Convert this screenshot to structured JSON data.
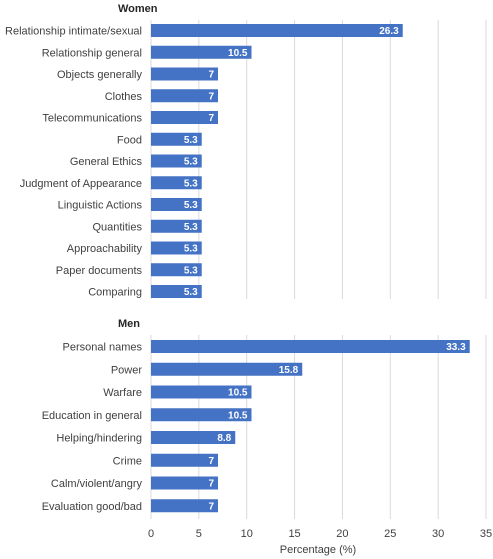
{
  "chart_data": [
    {
      "type": "bar",
      "orientation": "horizontal",
      "title": "Women",
      "categories": [
        "Relationship intimate/sexual",
        "Relationship general",
        "Objects generally",
        "Clothes",
        "Telecommunications",
        "Food",
        "General Ethics",
        "Judgment of Appearance",
        "Linguistic Actions",
        "Quantities",
        "Approachability",
        "Paper documents",
        "Comparing"
      ],
      "values": [
        26.3,
        10.5,
        7,
        7,
        7,
        5.3,
        5.3,
        5.3,
        5.3,
        5.3,
        5.3,
        5.3,
        5.3
      ],
      "xlim": [
        0,
        35
      ],
      "grid": true,
      "color": "#4472C4"
    },
    {
      "type": "bar",
      "orientation": "horizontal",
      "title": "Men",
      "categories": [
        "Personal names",
        "Power",
        "Warfare",
        "Education in general",
        "Helping/hindering",
        "Crime",
        "Calm/violent/angry",
        "Evaluation good/bad"
      ],
      "values": [
        33.3,
        15.8,
        10.5,
        10.5,
        8.8,
        7,
        7,
        7
      ],
      "xlim": [
        0,
        35
      ],
      "xticks": [
        "0",
        "5",
        "10",
        "15",
        "20",
        "25",
        "30",
        "35"
      ],
      "xlabel": "Percentage (%)",
      "grid": true,
      "color": "#4472C4"
    }
  ]
}
